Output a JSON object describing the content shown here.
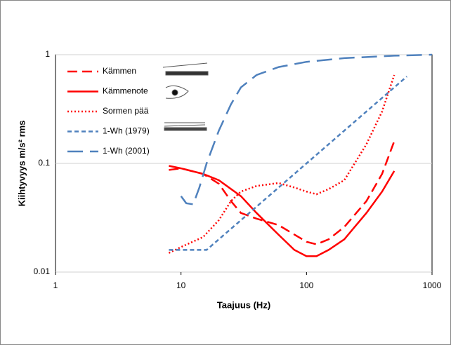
{
  "chart_data": {
    "type": "line",
    "x_label": "Taajuus (Hz)",
    "y_label": "Kiihtyvyys m/s² rms",
    "xscale": "log",
    "yscale": "log",
    "xlim": [
      1,
      1000
    ],
    "xticks": [
      1,
      10,
      100,
      1000
    ],
    "ylim": [
      0.01,
      1
    ],
    "yticks": [
      0.01,
      0.1,
      1
    ],
    "grid": true,
    "legend": "upper left",
    "series": [
      {
        "name": "Kämmen",
        "color": "#ff0000",
        "dash": "dashed",
        "x": [
          8,
          10,
          15,
          20,
          25,
          30,
          40,
          60,
          100,
          120,
          150,
          200,
          300,
          400,
          500
        ],
        "values": [
          0.087,
          0.09,
          0.08,
          0.065,
          0.045,
          0.035,
          0.031,
          0.027,
          0.019,
          0.018,
          0.02,
          0.026,
          0.045,
          0.08,
          0.16
        ]
      },
      {
        "name": "Kämmenote",
        "color": "#ff0000",
        "dash": "solid",
        "x": [
          8,
          10,
          15,
          20,
          30,
          40,
          60,
          80,
          100,
          120,
          150,
          200,
          300,
          400,
          500
        ],
        "values": [
          0.095,
          0.09,
          0.08,
          0.07,
          0.05,
          0.035,
          0.022,
          0.016,
          0.014,
          0.014,
          0.016,
          0.02,
          0.035,
          0.055,
          0.085
        ]
      },
      {
        "name": "Sormen pää",
        "color": "#ff0000",
        "dash": "dotted",
        "x": [
          8,
          10,
          15,
          20,
          25,
          30,
          40,
          60,
          80,
          100,
          120,
          150,
          200,
          300,
          400,
          500
        ],
        "values": [
          0.015,
          0.017,
          0.021,
          0.03,
          0.045,
          0.055,
          0.062,
          0.066,
          0.06,
          0.055,
          0.052,
          0.058,
          0.07,
          0.15,
          0.3,
          0.65
        ]
      },
      {
        "name": "1-Wh (1979)",
        "color": "#4f81bd",
        "dash": "short-dash",
        "x": [
          8,
          16,
          630
        ],
        "values": [
          0.016,
          0.016,
          0.63
        ]
      },
      {
        "name": "1-Wh (2001)",
        "color": "#4f81bd",
        "dash": "long-dash",
        "x": [
          10,
          11,
          12.5,
          14,
          16,
          20,
          25,
          30,
          40,
          60,
          100,
          200,
          500,
          1000
        ],
        "values": [
          0.05,
          0.043,
          0.042,
          0.06,
          0.1,
          0.2,
          0.35,
          0.5,
          0.65,
          0.77,
          0.86,
          0.93,
          0.98,
          1.0
        ]
      }
    ]
  }
}
